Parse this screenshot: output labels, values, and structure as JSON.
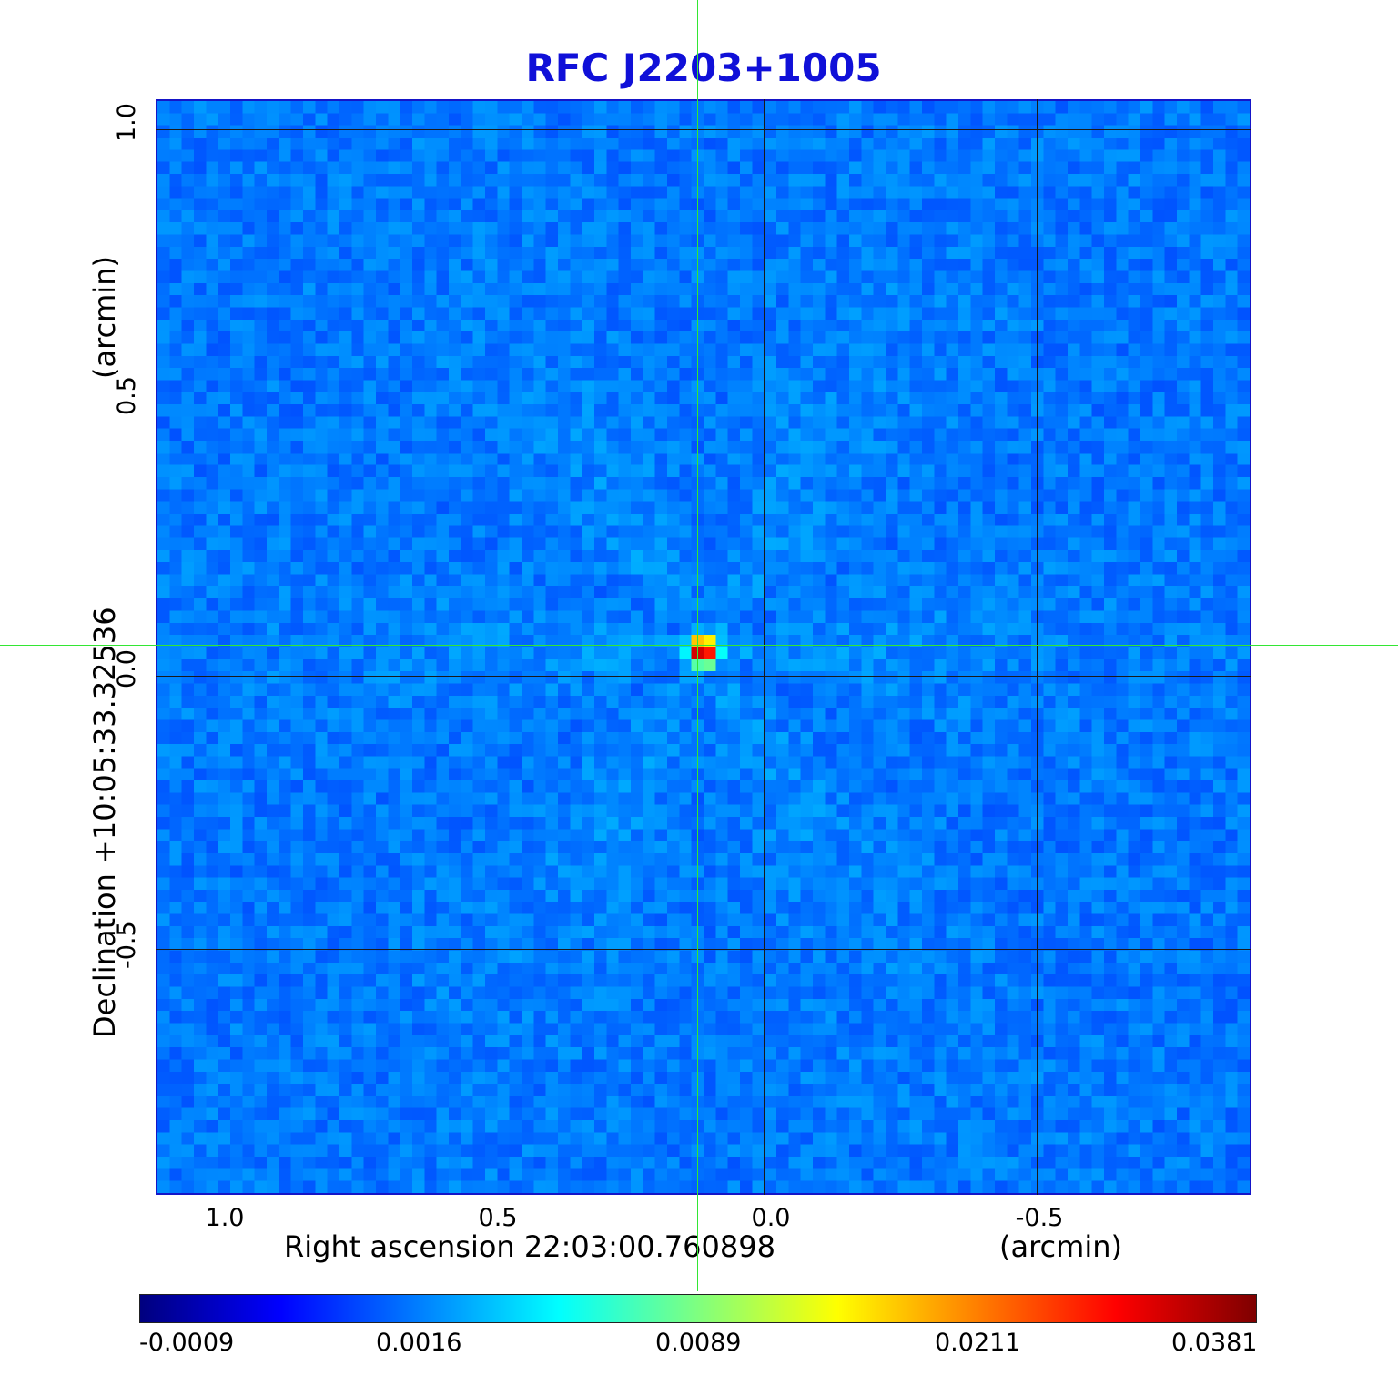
{
  "title": "RFC J2203+1005",
  "x_axis": {
    "label": "Right ascension  22:03:00.760898",
    "unit": "(arcmin)",
    "ticks": [
      "1.0",
      "0.5",
      "0.0",
      "-0.5"
    ]
  },
  "y_axis": {
    "label": "Declination  +10:05:33.32536",
    "unit": "(arcmin)",
    "ticks": [
      "1.0",
      "0.5",
      "0.0",
      "-0.5"
    ]
  },
  "colorbar": {
    "colormap": "jet",
    "ticks": [
      "-0.0009",
      "0.0016",
      "0.0089",
      "0.0211",
      "0.0381"
    ]
  },
  "image": {
    "background_color": "#1e4ef0",
    "source_peak_color": "#c00000",
    "crosshair_color": "#33e633"
  }
}
